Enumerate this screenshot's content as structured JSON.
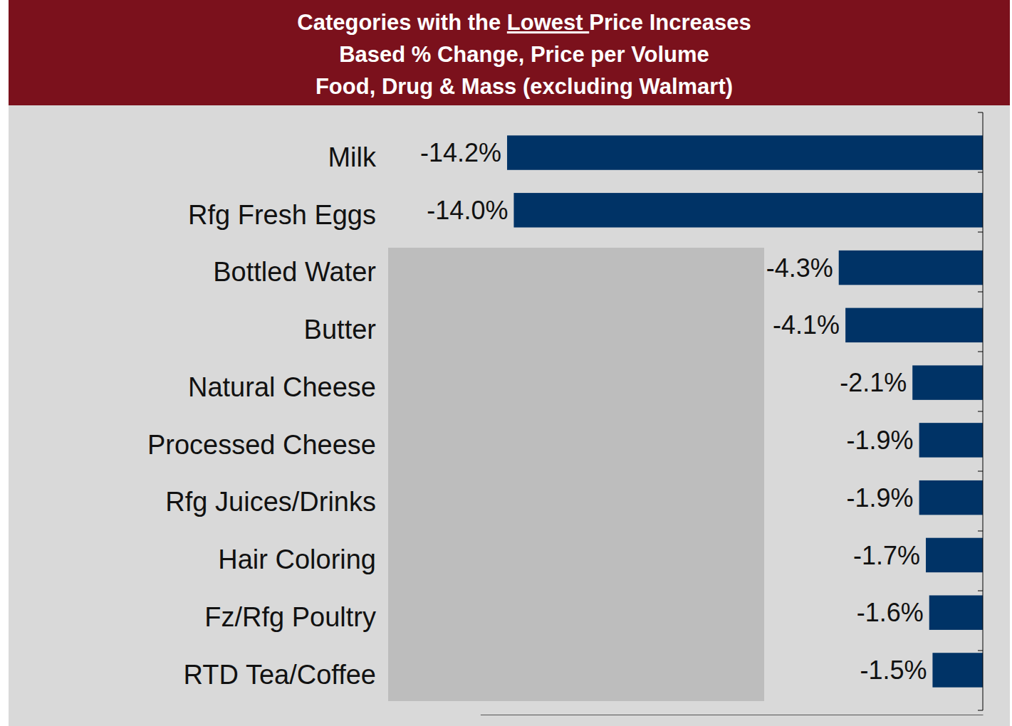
{
  "chart_data": {
    "type": "bar",
    "orientation": "horizontal",
    "title": "Categories with the Lowest Price Increases",
    "subtitle": [
      "Based % Change, Price per Volume",
      "Food, Drug & Mass (excluding Walmart)"
    ],
    "categories": [
      "Milk",
      "Rfg Fresh Eggs",
      "Bottled Water",
      "Butter",
      "Natural Cheese",
      "Processed Cheese",
      "Rfg Juices/Drinks",
      "Hair Coloring",
      "Fz/Rfg Poultry",
      "RTD Tea/Coffee"
    ],
    "values": [
      -14.2,
      -14.0,
      -4.3,
      -4.1,
      -2.1,
      -1.9,
      -1.9,
      -1.7,
      -1.6,
      -1.5
    ],
    "value_labels": [
      "-14.2%",
      "-14.0%",
      "-4.3%",
      "-4.1%",
      "-2.1%",
      "-1.9%",
      "-1.9%",
      "-1.7%",
      "-1.6%",
      "-1.5%"
    ],
    "color": "#003366",
    "xlim": [
      -15,
      0
    ],
    "xticks": [],
    "grid": false,
    "data_labels": true,
    "tick_labels": "y"
  }
}
